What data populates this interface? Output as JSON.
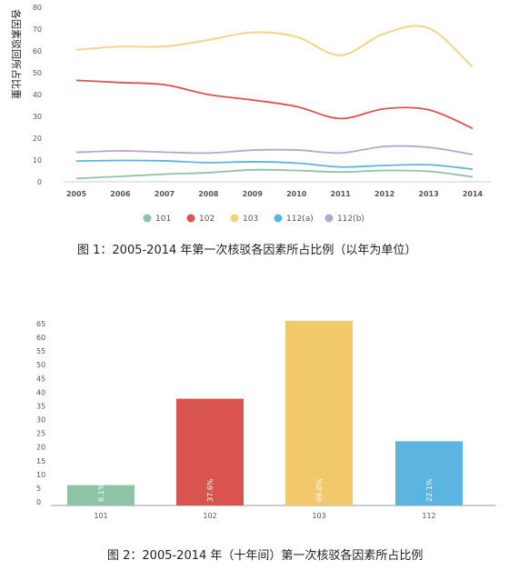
{
  "chart_data": [
    {
      "type": "line",
      "ylabel": "各因素驳回所占比重",
      "x": [
        "2005",
        "2006",
        "2007",
        "2008",
        "2009",
        "2010",
        "2011",
        "2012",
        "2013",
        "2014"
      ],
      "yticks": [
        "0",
        "10",
        "20",
        "30",
        "40",
        "50",
        "60",
        "70",
        "80"
      ],
      "ylim": [
        0,
        80
      ],
      "grid": false,
      "legend_position": "bottom",
      "series": [
        {
          "name": "101",
          "color": "#8dc3a7",
          "values": [
            1.5,
            2.5,
            3.5,
            4.2,
            5.5,
            5.2,
            4.5,
            5.2,
            4.8,
            2.3
          ]
        },
        {
          "name": "102",
          "color": "#d9534f",
          "values": [
            46.5,
            45.5,
            44.5,
            40,
            37.5,
            34.5,
            29,
            33.5,
            33,
            24.5
          ]
        },
        {
          "name": "103",
          "color": "#f1d37c",
          "values": [
            60.5,
            62,
            62,
            65,
            68.5,
            66.5,
            58,
            68,
            70.5,
            52.5
          ]
        },
        {
          "name": "112(a)",
          "color": "#5bb5e0",
          "values": [
            9.5,
            9.8,
            9.6,
            8.8,
            9.2,
            8.6,
            6.8,
            7.5,
            7.8,
            5.8
          ]
        },
        {
          "name": "112(b)",
          "color": "#b5a8cc",
          "values": [
            13.5,
            14.2,
            13.6,
            13.2,
            14.5,
            14.6,
            13.2,
            16.2,
            15.8,
            12.5
          ]
        }
      ],
      "caption": "图 1：2005-2014 年第一次核驳各因素所占比例（以年为单位）"
    },
    {
      "type": "bar",
      "categories": [
        "101",
        "102",
        "103",
        "112"
      ],
      "values": [
        6.1,
        37.6,
        66.0,
        22.1
      ],
      "data_labels": [
        "6.1%",
        "37.6%",
        "66.0%",
        "22.1%"
      ],
      "colors": [
        "#8dc3a7",
        "#d9534f",
        "#f1c96a",
        "#5bb5e0"
      ],
      "yticks": [
        "0",
        "5",
        "10",
        "15",
        "20",
        "25",
        "30",
        "35",
        "40",
        "45",
        "50",
        "55",
        "60",
        "65"
      ],
      "ylim": [
        0,
        65
      ],
      "caption": "图 2：2005-2014 年（十年间）第一次核驳各因素所占比例"
    }
  ]
}
